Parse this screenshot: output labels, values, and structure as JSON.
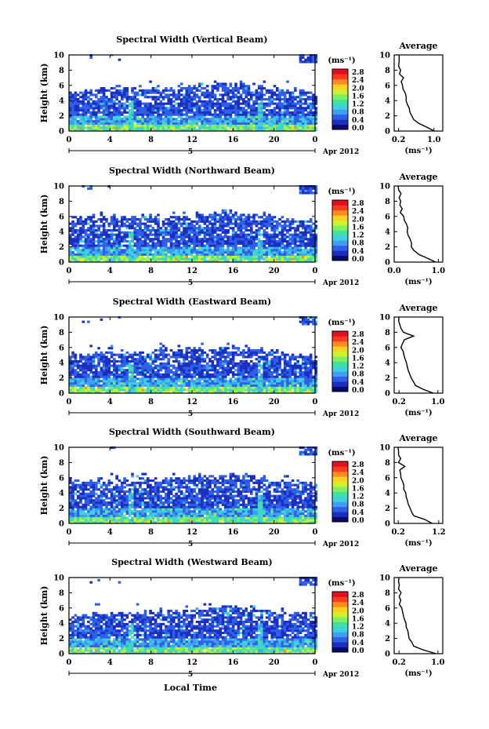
{
  "figure": {
    "xlabel": "Local Time",
    "colorbar_unit": "(ms⁻¹)",
    "colorbar_ticks": [
      "0.0",
      "0.4",
      "0.8",
      "1.2",
      "1.6",
      "2.0",
      "2.4",
      "2.8"
    ],
    "colorbar_colors": [
      "#0a0a6a",
      "#1a2fc0",
      "#2f5fe8",
      "#3f9ef0",
      "#3fd0e0",
      "#40e0a0",
      "#80f060",
      "#d0f030",
      "#ffd020",
      "#ff8a20",
      "#ff3a20",
      "#e01020"
    ],
    "date_label": "Apr 2012",
    "day_label": "5",
    "avg_title": "Average",
    "avg_unit": "(ms⁻¹)"
  },
  "chart_data": [
    {
      "type": "heatmap",
      "title": "Spectral Width (Vertical Beam)",
      "ylabel": "Height (km)",
      "xlabel": "",
      "x_ticks": [
        "0",
        "4",
        "8",
        "12",
        "16",
        "20",
        "0"
      ],
      "y_ticks": [
        "0",
        "2",
        "4",
        "6",
        "8",
        "10"
      ],
      "xlim": [
        0,
        24
      ],
      "ylim": [
        0,
        10
      ],
      "cloud_top_km": [
        [
          0,
          5.0
        ],
        [
          4,
          5.5
        ],
        [
          8,
          5.6
        ],
        [
          12,
          5.8
        ],
        [
          15,
          6.3
        ],
        [
          18,
          6.0
        ],
        [
          21,
          5.3
        ],
        [
          24,
          5.2
        ]
      ],
      "avg_profile": {
        "x_ticks": [
          "0.2",
          "1.0"
        ],
        "xlim": [
          0.1,
          1.2
        ],
        "height_km": [
          0,
          0.5,
          1,
          1.5,
          2,
          2.5,
          3,
          3.5,
          4,
          4.5,
          5,
          5.5,
          6,
          6.5,
          7,
          7.5,
          8,
          8.5,
          9,
          9.5,
          10
        ],
        "width": [
          1.0,
          0.85,
          0.65,
          0.55,
          0.5,
          0.45,
          0.45,
          0.4,
          0.38,
          0.36,
          0.34,
          0.3,
          0.28,
          0.26,
          0.3,
          0.22,
          0.25,
          0.2,
          0.22,
          0.2,
          0.2
        ]
      }
    },
    {
      "type": "heatmap",
      "title": "Spectral Width (Northward Beam)",
      "ylabel": "Height (km)",
      "xlabel": "",
      "x_ticks": [
        "0",
        "4",
        "8",
        "12",
        "16",
        "20",
        "0"
      ],
      "y_ticks": [
        "0",
        "2",
        "4",
        "6",
        "8",
        "10"
      ],
      "xlim": [
        0,
        24
      ],
      "ylim": [
        0,
        10
      ],
      "cloud_top_km": [
        [
          0,
          5.8
        ],
        [
          4,
          5.9
        ],
        [
          8,
          5.8
        ],
        [
          12,
          6.0
        ],
        [
          15,
          6.5
        ],
        [
          18,
          6.2
        ],
        [
          21,
          5.5
        ],
        [
          24,
          5.3
        ]
      ],
      "avg_profile": {
        "x_ticks": [
          "0.0",
          "1.0"
        ],
        "xlim": [
          0.0,
          1.1
        ],
        "height_km": [
          0,
          0.5,
          1,
          1.5,
          2,
          2.5,
          3,
          3.5,
          4,
          4.5,
          5,
          5.5,
          6,
          6.5,
          7,
          7.5,
          8,
          8.5,
          9,
          9.5,
          10
        ],
        "width": [
          0.95,
          0.75,
          0.55,
          0.45,
          0.4,
          0.38,
          0.36,
          0.33,
          0.3,
          0.3,
          0.28,
          0.24,
          0.22,
          0.15,
          0.18,
          0.12,
          0.15,
          0.1,
          0.15,
          0.1,
          0.1
        ]
      }
    },
    {
      "type": "heatmap",
      "title": "Spectral Width (Eastward Beam)",
      "ylabel": "Height (km)",
      "xlabel": "",
      "x_ticks": [
        "0",
        "4",
        "8",
        "12",
        "16",
        "20",
        "0"
      ],
      "y_ticks": [
        "0",
        "2",
        "4",
        "6",
        "8",
        "10"
      ],
      "xlim": [
        0,
        24
      ],
      "ylim": [
        0,
        10
      ],
      "cloud_top_km": [
        [
          0,
          5.0
        ],
        [
          4,
          5.3
        ],
        [
          8,
          5.4
        ],
        [
          12,
          5.6
        ],
        [
          15,
          6.0
        ],
        [
          18,
          5.8
        ],
        [
          21,
          5.0
        ],
        [
          24,
          4.8
        ]
      ],
      "avg_profile": {
        "x_ticks": [
          "0.2",
          "1.0"
        ],
        "xlim": [
          0.1,
          1.1
        ],
        "height_km": [
          0,
          0.5,
          1,
          1.5,
          2,
          2.5,
          3,
          3.5,
          4,
          4.5,
          5,
          5.5,
          6,
          6.5,
          7,
          7.5,
          8,
          8.5,
          9,
          9.5,
          10
        ],
        "width": [
          0.9,
          0.7,
          0.55,
          0.5,
          0.45,
          0.42,
          0.4,
          0.38,
          0.36,
          0.33,
          0.3,
          0.28,
          0.25,
          0.28,
          0.3,
          0.5,
          0.3,
          0.25,
          0.22,
          0.2,
          0.2
        ]
      }
    },
    {
      "type": "heatmap",
      "title": "Spectral Width (Southward Beam)",
      "ylabel": "Height (km)",
      "xlabel": "",
      "x_ticks": [
        "0",
        "4",
        "8",
        "12",
        "16",
        "20",
        "0"
      ],
      "y_ticks": [
        "0",
        "2",
        "4",
        "6",
        "8",
        "10"
      ],
      "xlim": [
        0,
        24
      ],
      "ylim": [
        0,
        10
      ],
      "cloud_top_km": [
        [
          0,
          5.5
        ],
        [
          4,
          5.6
        ],
        [
          8,
          5.7
        ],
        [
          12,
          5.9
        ],
        [
          15,
          6.3
        ],
        [
          18,
          6.0
        ],
        [
          21,
          5.4
        ],
        [
          24,
          5.2
        ]
      ],
      "avg_profile": {
        "x_ticks": [
          "0.2",
          "1.2"
        ],
        "xlim": [
          0.1,
          1.3
        ],
        "height_km": [
          0,
          0.5,
          1,
          1.5,
          2,
          2.5,
          3,
          3.5,
          4,
          4.5,
          5,
          5.5,
          6,
          6.5,
          7,
          7.5,
          8,
          8.5,
          9,
          9.5,
          10
        ],
        "width": [
          1.05,
          0.85,
          0.6,
          0.52,
          0.48,
          0.45,
          0.43,
          0.4,
          0.38,
          0.35,
          0.33,
          0.3,
          0.27,
          0.25,
          0.24,
          0.35,
          0.22,
          0.25,
          0.2,
          0.2,
          0.2
        ]
      }
    },
    {
      "type": "heatmap",
      "title": "Spectral Width (Westward Beam)",
      "ylabel": "Height (km)",
      "xlabel": "",
      "x_ticks": [
        "0",
        "4",
        "8",
        "12",
        "16",
        "20",
        "0"
      ],
      "y_ticks": [
        "0",
        "2",
        "4",
        "6",
        "8",
        "10"
      ],
      "xlim": [
        0,
        24
      ],
      "ylim": [
        0,
        10
      ],
      "cloud_top_km": [
        [
          0,
          5.0
        ],
        [
          4,
          5.2
        ],
        [
          8,
          5.3
        ],
        [
          12,
          5.6
        ],
        [
          15,
          6.1
        ],
        [
          18,
          5.8
        ],
        [
          21,
          5.2
        ],
        [
          24,
          5.0
        ]
      ],
      "avg_profile": {
        "x_ticks": [
          "0.2",
          "1.0"
        ],
        "xlim": [
          0.1,
          1.1
        ],
        "height_km": [
          0,
          0.5,
          1,
          1.5,
          2,
          2.5,
          3,
          3.5,
          4,
          4.5,
          5,
          5.5,
          6,
          6.5,
          7,
          7.5,
          8,
          8.5,
          9,
          9.5,
          10
        ],
        "width": [
          0.95,
          0.7,
          0.5,
          0.45,
          0.4,
          0.38,
          0.37,
          0.36,
          0.35,
          0.3,
          0.28,
          0.26,
          0.25,
          0.22,
          0.24,
          0.2,
          0.25,
          0.2,
          0.22,
          0.2,
          0.2
        ]
      }
    }
  ]
}
